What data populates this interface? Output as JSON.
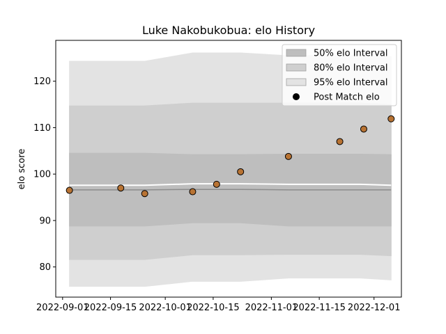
{
  "chart_data": {
    "type": "line",
    "title": "Luke Nakobukobua: elo History",
    "xlabel": "",
    "ylabel": "elo score",
    "x_ticks": [
      "2022-09-01",
      "2022-09-15",
      "2022-10-01",
      "2022-10-15",
      "2022-11-01",
      "2022-11-15",
      "2022-12-01"
    ],
    "y_ticks": [
      80,
      90,
      100,
      110,
      120
    ],
    "xlim": [
      "2022-08-30",
      "2022-12-09"
    ],
    "ylim": [
      73.5,
      128.8
    ],
    "grid": false,
    "legend_position": "top-right",
    "interval_dates": [
      "2022-09-03",
      "2022-09-25",
      "2022-10-09",
      "2022-10-23",
      "2022-11-06",
      "2022-11-27",
      "2022-12-06"
    ],
    "intervals": [
      {
        "name": "95% elo Interval",
        "color": "#e3e3e3",
        "upper": [
          124.3,
          124.3,
          126.1,
          126.1,
          125.5,
          125.5,
          125.3
        ],
        "lower": [
          75.8,
          75.8,
          76.9,
          76.9,
          77.6,
          77.6,
          77.2
        ]
      },
      {
        "name": "80% elo Interval",
        "color": "#cfcfcf",
        "upper": [
          114.7,
          114.7,
          115.3,
          115.3,
          115.3,
          115.3,
          115.0
        ],
        "lower": [
          81.6,
          81.6,
          82.6,
          82.6,
          82.7,
          82.7,
          82.4
        ]
      },
      {
        "name": "50% elo Interval",
        "color": "#bebebe",
        "upper": [
          104.5,
          104.5,
          104.2,
          104.2,
          104.3,
          104.3,
          104.2
        ],
        "lower": [
          88.8,
          88.8,
          89.5,
          89.5,
          88.8,
          88.8,
          88.8
        ]
      }
    ],
    "mean_line": {
      "color": "#8c8c8c",
      "values": [
        96.6,
        96.6,
        96.7,
        96.7,
        96.6,
        96.6,
        96.6
      ]
    },
    "median_line": {
      "color": "#ffffff",
      "values": [
        97.6,
        97.6,
        97.9,
        97.9,
        97.8,
        97.8,
        97.6
      ]
    },
    "post_match": {
      "name": "Post Match elo",
      "color": "#b87333",
      "dates": [
        "2022-09-03",
        "2022-09-18",
        "2022-09-25",
        "2022-10-09",
        "2022-10-16",
        "2022-10-23",
        "2022-11-06",
        "2022-11-21",
        "2022-11-28",
        "2022-12-06"
      ],
      "values": [
        96.5,
        97.0,
        95.8,
        96.2,
        97.8,
        100.5,
        103.8,
        107.0,
        109.7,
        111.9
      ]
    }
  }
}
